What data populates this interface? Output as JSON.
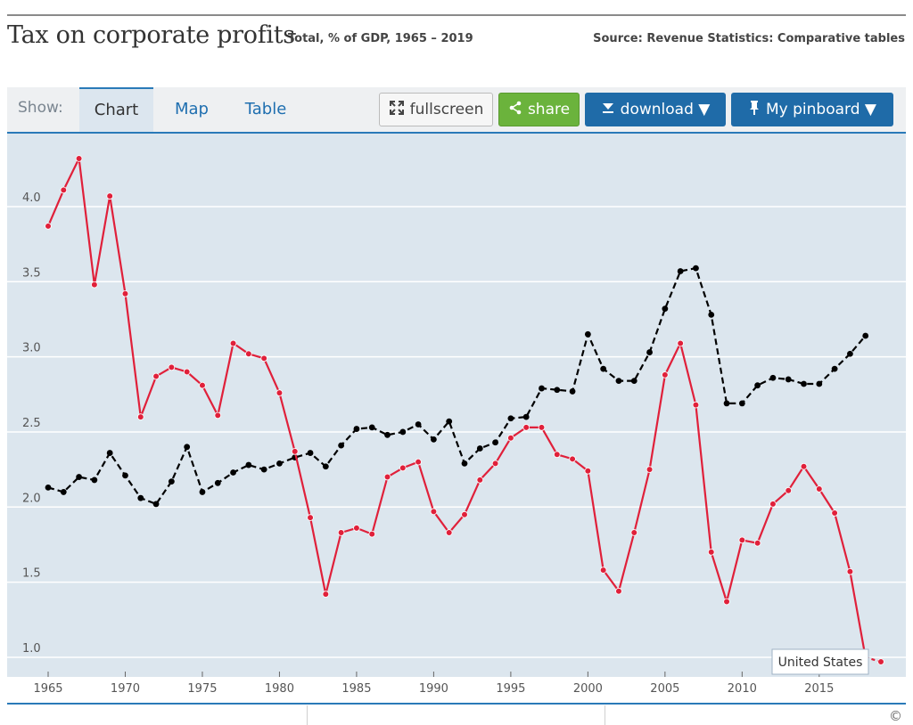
{
  "header": {
    "title": "Tax on corporate profits",
    "subtitle": "Total, % of GDP, 1965 – 2019",
    "source": "Source: Revenue Statistics: Comparative tables"
  },
  "toolbar": {
    "show_label": "Show:",
    "tabs": [
      {
        "label": "Chart",
        "active": true
      },
      {
        "label": "Map",
        "active": false
      },
      {
        "label": "Table",
        "active": false
      }
    ],
    "fullscreen_label": "fullscreen",
    "share_label": "share",
    "download_label": "download ▼",
    "pinboard_label": "My pinboard ▼"
  },
  "footer": {
    "copyright": "©"
  },
  "colors": {
    "highlight": "#e0203a",
    "baseline": "#000000",
    "plot_bg": "#dce6ee",
    "accent": "#1f6ba8"
  },
  "chart_data": {
    "type": "line",
    "title": "Tax on corporate profits",
    "xlim": [
      1965,
      2019
    ],
    "ylim": [
      0.9,
      4.45
    ],
    "x_ticks": [
      1965,
      1970,
      1975,
      1980,
      1985,
      1990,
      1995,
      2000,
      2005,
      2010,
      2015
    ],
    "y_ticks": [
      1.0,
      1.5,
      2.0,
      2.5,
      3.0,
      3.5,
      4.0
    ],
    "y_tick_labels": [
      "1.0",
      "1.5",
      "2.0",
      "2.5",
      "3.0",
      "3.5",
      "4.0"
    ],
    "grid": true,
    "series": [
      {
        "name": "",
        "style": "dashed-black",
        "x": [
          1965,
          1966,
          1967,
          1968,
          1969,
          1970,
          1971,
          1972,
          1973,
          1974,
          1975,
          1976,
          1977,
          1978,
          1979,
          1980,
          1981,
          1982,
          1983,
          1984,
          1985,
          1986,
          1987,
          1988,
          1989,
          1990,
          1991,
          1992,
          1993,
          1994,
          1995,
          1996,
          1997,
          1998,
          1999,
          2000,
          2001,
          2002,
          2003,
          2004,
          2005,
          2006,
          2007,
          2008,
          2009,
          2010,
          2011,
          2012,
          2013,
          2014,
          2015,
          2016,
          2017,
          2018
        ],
        "values": [
          2.13,
          2.1,
          2.2,
          2.18,
          2.36,
          2.21,
          2.06,
          2.02,
          2.17,
          2.4,
          2.1,
          2.16,
          2.23,
          2.28,
          2.25,
          2.29,
          2.33,
          2.36,
          2.27,
          2.41,
          2.52,
          2.53,
          2.48,
          2.5,
          2.55,
          2.45,
          2.57,
          2.29,
          2.39,
          2.43,
          2.59,
          2.6,
          2.79,
          2.78,
          2.77,
          3.15,
          2.92,
          2.84,
          2.84,
          3.03,
          3.32,
          3.57,
          3.59,
          3.28,
          2.69,
          2.69,
          2.81,
          2.86,
          2.85,
          2.82,
          2.82,
          2.92,
          3.02,
          3.14
        ]
      },
      {
        "name": "United States",
        "style": "solid-red",
        "x": [
          1965,
          1966,
          1967,
          1968,
          1969,
          1970,
          1971,
          1972,
          1973,
          1974,
          1975,
          1976,
          1977,
          1978,
          1979,
          1980,
          1981,
          1982,
          1983,
          1984,
          1985,
          1986,
          1987,
          1988,
          1989,
          1990,
          1991,
          1992,
          1993,
          1994,
          1995,
          1996,
          1997,
          1998,
          1999,
          2000,
          2001,
          2002,
          2003,
          2004,
          2005,
          2006,
          2007,
          2008,
          2009,
          2010,
          2011,
          2012,
          2013,
          2014,
          2015,
          2016,
          2017,
          2018,
          2019
        ],
        "values": [
          3.87,
          4.11,
          4.32,
          3.48,
          4.07,
          3.42,
          2.6,
          2.87,
          2.93,
          2.9,
          2.81,
          2.61,
          3.09,
          3.02,
          2.99,
          2.76,
          2.37,
          1.93,
          1.42,
          1.83,
          1.86,
          1.82,
          2.2,
          2.26,
          2.3,
          1.97,
          1.83,
          1.95,
          2.18,
          2.29,
          2.46,
          2.53,
          2.53,
          2.35,
          2.32,
          2.24,
          1.58,
          1.44,
          1.83,
          2.25,
          2.88,
          3.09,
          2.68,
          1.7,
          1.37,
          1.78,
          1.76,
          2.02,
          2.11,
          2.27,
          2.12,
          1.96,
          1.57,
          1.0,
          0.97
        ]
      }
    ],
    "annotation": {
      "label": "United States",
      "year": 2019
    }
  }
}
